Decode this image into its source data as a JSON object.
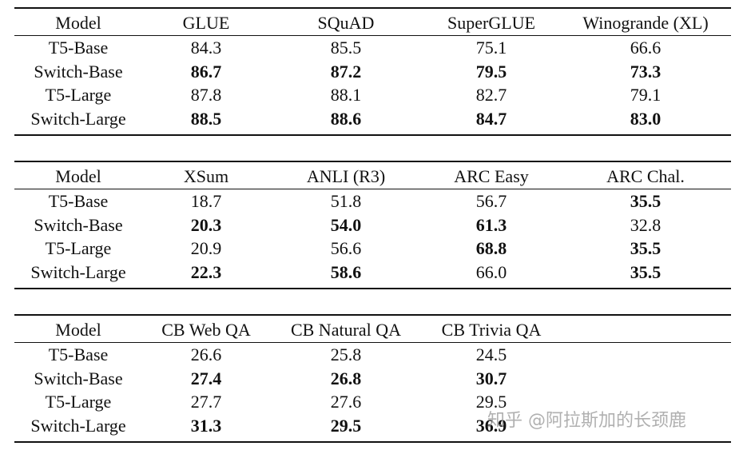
{
  "tables": [
    {
      "header": [
        "Model",
        "GLUE",
        "SQuAD",
        "SuperGLUE",
        "Winogrande (XL)"
      ],
      "rows": [
        {
          "cells": [
            "T5-Base",
            "84.3",
            "85.5",
            "75.1",
            "66.6"
          ],
          "bold": []
        },
        {
          "cells": [
            "Switch-Base",
            "86.7",
            "87.2",
            "79.5",
            "73.3"
          ],
          "bold": [
            1,
            2,
            3,
            4
          ]
        },
        {
          "cells": [
            "T5-Large",
            "87.8",
            "88.1",
            "82.7",
            "79.1"
          ],
          "bold": []
        },
        {
          "cells": [
            "Switch-Large",
            "88.5",
            "88.6",
            "84.7",
            "83.0"
          ],
          "bold": [
            1,
            2,
            3,
            4
          ]
        }
      ]
    },
    {
      "header": [
        "Model",
        "XSum",
        "ANLI (R3)",
        "ARC Easy",
        "ARC Chal."
      ],
      "rows": [
        {
          "cells": [
            "T5-Base",
            "18.7",
            "51.8",
            "56.7",
            "35.5"
          ],
          "bold": [
            4
          ]
        },
        {
          "cells": [
            "Switch-Base",
            "20.3",
            "54.0",
            "61.3",
            "32.8"
          ],
          "bold": [
            1,
            2,
            3
          ]
        },
        {
          "cells": [
            "T5-Large",
            "20.9",
            "56.6",
            "68.8",
            "35.5"
          ],
          "bold": [
            3,
            4
          ]
        },
        {
          "cells": [
            "Switch-Large",
            "22.3",
            "58.6",
            "66.0",
            "35.5"
          ],
          "bold": [
            1,
            2,
            4
          ]
        }
      ]
    },
    {
      "header": [
        "Model",
        "CB Web QA",
        "CB Natural QA",
        "CB Trivia QA"
      ],
      "rows": [
        {
          "cells": [
            "T5-Base",
            "26.6",
            "25.8",
            "24.5"
          ],
          "bold": []
        },
        {
          "cells": [
            "Switch-Base",
            "27.4",
            "26.8",
            "30.7"
          ],
          "bold": [
            1,
            2,
            3
          ]
        },
        {
          "cells": [
            "T5-Large",
            "27.7",
            "27.6",
            "29.5"
          ],
          "bold": []
        },
        {
          "cells": [
            "Switch-Large",
            "31.3",
            "29.5",
            "36.9"
          ],
          "bold": [
            1,
            2,
            3
          ]
        }
      ]
    }
  ],
  "watermark": "知乎 @阿拉斯加的长颈鹿"
}
